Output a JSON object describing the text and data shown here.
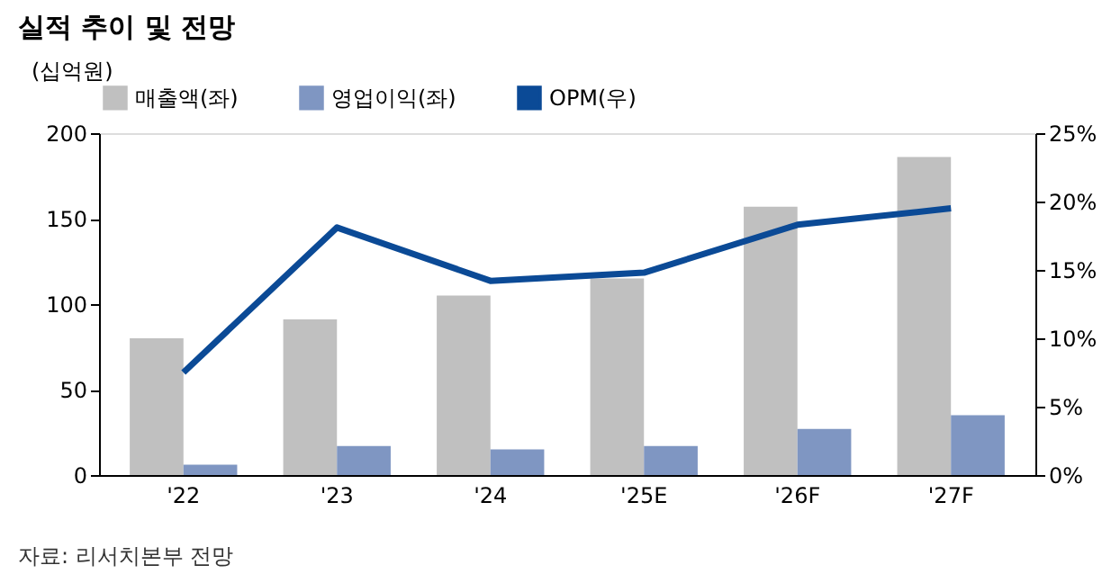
{
  "chart_data": {
    "type": "bar",
    "title": "실적 추이 및 전망",
    "ylabel": "(십억원)",
    "categories": [
      "'22",
      "'23",
      "'24",
      "'25E",
      "'26F",
      "'27F"
    ],
    "series": [
      {
        "name": "매출액(좌)",
        "color": "#c0c0c0",
        "values": [
          80,
          91,
          105,
          115,
          157,
          186
        ]
      },
      {
        "name": "영업이익(좌)",
        "color": "#7f96c2",
        "values": [
          6,
          17,
          15,
          17,
          27,
          35
        ]
      },
      {
        "name": "OPM(우)",
        "type": "line",
        "axis": "y2",
        "color": "#0b4a96",
        "values": [
          7.5,
          18.1,
          14.2,
          14.8,
          18.3,
          19.5
        ]
      }
    ],
    "ylim": [
      0,
      200
    ],
    "yticks": [
      0,
      50,
      100,
      150,
      200
    ],
    "y2lim": [
      0,
      25
    ],
    "y2ticks": [
      {
        "value": 0,
        "label": "0%"
      },
      {
        "value": 5,
        "label": "5%"
      },
      {
        "value": 10,
        "label": "10%"
      },
      {
        "value": 15,
        "label": "15%"
      },
      {
        "value": 20,
        "label": "20%"
      },
      {
        "value": 25,
        "label": "25%"
      }
    ],
    "legend": "top",
    "grid": false,
    "marker": "none",
    "line_style": "solid",
    "annotations": [
      "자료: 리서치본부 전망"
    ]
  }
}
